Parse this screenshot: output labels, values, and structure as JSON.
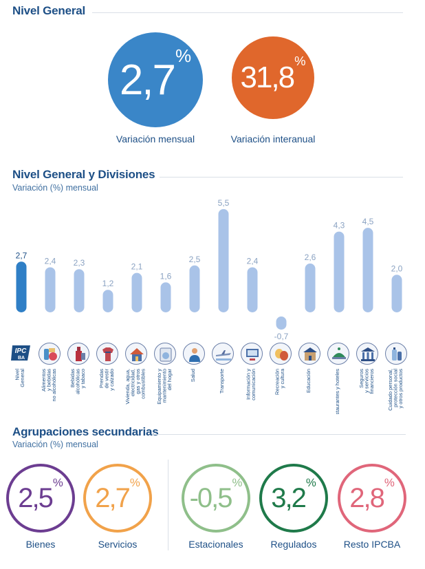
{
  "nivel_general": {
    "title": "Nivel General",
    "mensual": {
      "value": "2,7",
      "pct": "%",
      "label": "Variación mensual",
      "color": "#3a86c8"
    },
    "interanual": {
      "value": "31,8",
      "pct": "%",
      "label": "Variación interanual",
      "color": "#e0672c"
    }
  },
  "divisiones": {
    "title": "Nivel General y Divisiones",
    "subtitle": "Variación (%) mensual"
  },
  "chart_data": {
    "type": "bar",
    "categories": [
      "Nivel General",
      "Alimentos y bebidas no alcohólicas",
      "Bebidas alcohólicas y tabaco",
      "Prendas de vestir y calzado",
      "Vivienda, agua, electricidad, gas y otros combustibles",
      "Equipamiento y mantenimiento del hogar",
      "Salud",
      "Transporte",
      "Información y comunicación",
      "Recreación y cultura",
      "Educación",
      "Restaurantes y hoteles",
      "Seguros y servicios financieros",
      "Cuidado personal, protección social y otros productos"
    ],
    "category_lines": [
      [
        "Nivel",
        "General"
      ],
      [
        "Alimentos",
        "y bebidas",
        "no alcohólicas"
      ],
      [
        "Bebidas",
        "alcohólicas",
        "y tabaco"
      ],
      [
        "Prendas",
        "de vestir",
        "y calzado"
      ],
      [
        "Vivienda, agua,",
        "electricidad,",
        "gas y otros",
        "combustibles"
      ],
      [
        "Equipamiento y",
        "mantenimiento",
        "del hogar"
      ],
      [
        "Salud"
      ],
      [
        "Transporte"
      ],
      [
        "Información y",
        "comunicación"
      ],
      [
        "Recreación",
        "y cultura"
      ],
      [
        "Educación"
      ],
      [
        "Restaurantes y hoteles"
      ],
      [
        "Seguros",
        "y servicios",
        "financieros"
      ],
      [
        "Cuidado personal,",
        "protección social",
        "y otros productos"
      ]
    ],
    "values": [
      2.7,
      2.4,
      2.3,
      1.2,
      2.1,
      1.6,
      2.5,
      5.5,
      2.4,
      -0.7,
      2.6,
      4.3,
      4.5,
      2.0
    ],
    "value_labels": [
      "2,7",
      "2,4",
      "2,3",
      "1,2",
      "2,1",
      "1,6",
      "2,5",
      "5,5",
      "2,4",
      "-0,7",
      "2,6",
      "4,3",
      "4,5",
      "2,0"
    ],
    "highlight_index": 0,
    "colors": {
      "highlight": "#2f7fc6",
      "bar": "#a9c3e8",
      "label": "#8aa2c2",
      "highlight_label": "#1d4f86"
    },
    "grid": false
  },
  "icons": [
    "ipc-logo",
    "food-icon",
    "bottle-icon",
    "clothes-icon",
    "house-icon",
    "washing-machine-icon",
    "doctor-icon",
    "plane-icon",
    "computer-icon",
    "theater-masks-icon",
    "school-icon",
    "restaurant-icon",
    "bank-icon",
    "personal-care-icon"
  ],
  "ipc_logo_text": "IPC",
  "ipc_logo_subtext": "BA",
  "secundarias": {
    "title": "Agrupaciones secundarias",
    "subtitle": "Variación (%) mensual",
    "items": [
      {
        "value": "2,5",
        "pct": "%",
        "label": "Bienes",
        "color": "#6c3d91"
      },
      {
        "value": "2,7",
        "pct": "%",
        "label": "Servicios",
        "color": "#f1a24a"
      },
      {
        "value": "-0,5",
        "pct": "%",
        "label": "Estacionales",
        "color": "#8fbf8a"
      },
      {
        "value": "3,2",
        "pct": "%",
        "label": "Regulados",
        "color": "#1f7a4a"
      },
      {
        "value": "2,8",
        "pct": "%",
        "label": "Resto IPCBA",
        "color": "#e0667a"
      }
    ]
  }
}
